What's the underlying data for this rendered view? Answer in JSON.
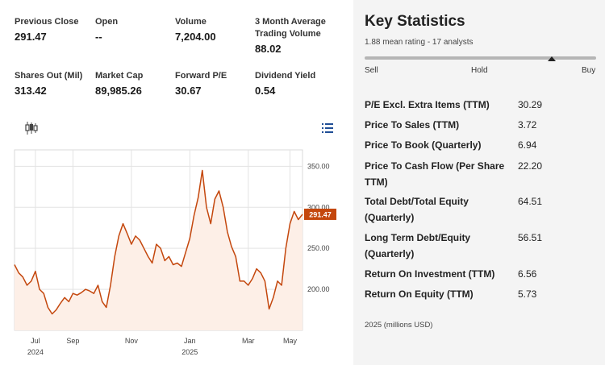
{
  "quote_stats": [
    {
      "label": "Previous Close",
      "value": "291.47"
    },
    {
      "label": "Open",
      "value": "--"
    },
    {
      "label": "Volume",
      "value": "7,204.00"
    },
    {
      "label": "3 Month Average Trading Volume",
      "value": "88.02"
    },
    {
      "label": "Shares Out (Mil)",
      "value": "313.42"
    },
    {
      "label": "Market Cap",
      "value": "89,985.26"
    },
    {
      "label": "Forward P/E",
      "value": "30.67"
    },
    {
      "label": "Dividend Yield",
      "value": "0.54"
    }
  ],
  "chart_controls": {
    "candlestick_icon": "candlestick-icon",
    "list_icon": "list-icon"
  },
  "chart_data": {
    "type": "area",
    "series": [
      {
        "values": [
          230,
          220,
          215,
          205,
          210,
          222,
          200,
          195,
          178,
          170,
          175,
          183,
          190,
          185,
          195,
          193,
          196,
          200,
          198,
          195,
          205,
          185,
          178,
          205,
          240,
          265,
          280,
          268,
          255,
          265,
          260,
          250,
          240,
          232,
          255,
          250,
          235,
          240,
          230,
          232,
          228,
          245,
          262,
          290,
          312,
          345,
          300,
          280,
          310,
          320,
          300,
          270,
          252,
          240,
          210,
          210,
          205,
          213,
          225,
          220,
          210,
          176,
          190,
          210,
          205,
          250,
          280,
          295,
          285,
          291.47
        ]
      }
    ],
    "x_tick_labels": [
      {
        "label": "Jul",
        "sub": "2024",
        "index": 5
      },
      {
        "label": "Sep",
        "sub": "",
        "index": 14
      },
      {
        "label": "Nov",
        "sub": "",
        "index": 28
      },
      {
        "label": "Jan",
        "sub": "2025",
        "index": 42
      },
      {
        "label": "Mar",
        "sub": "",
        "index": 56
      },
      {
        "label": "May",
        "sub": "",
        "index": 66
      }
    ],
    "y_ticks": [
      200,
      250,
      300,
      350
    ],
    "y_tick_labels": [
      "200.00",
      "250.00",
      "300.00",
      "350.00"
    ],
    "ylim": [
      150,
      370
    ],
    "last_value_label": "291.47",
    "colors": {
      "line": "#c4470d",
      "fill": "#fdefe7",
      "badge": "#c4470d",
      "grid": "#e3e3e3"
    },
    "grid": true
  },
  "key_stats": {
    "title": "Key Statistics",
    "subtitle": "1.88 mean rating - 17 analysts",
    "rating": {
      "sell": "Sell",
      "hold": "Hold",
      "buy": "Buy",
      "position_fraction": 0.81
    },
    "metrics": [
      {
        "label": "P/E Excl. Extra Items (TTM)",
        "value": "30.29"
      },
      {
        "label": "Price To Sales (TTM)",
        "value": "3.72"
      },
      {
        "label": "Price To Book (Quarterly)",
        "value": "6.94"
      },
      {
        "label": "Price To Cash Flow (Per Share TTM)",
        "value": "22.20"
      },
      {
        "label": "Total Debt/Total Equity (Quarterly)",
        "value": "64.51"
      },
      {
        "label": "Long Term Debt/Equity (Quarterly)",
        "value": "56.51"
      },
      {
        "label": "Return On Investment (TTM)",
        "value": "6.56"
      },
      {
        "label": "Return On Equity (TTM)",
        "value": "5.73"
      }
    ],
    "footnote": "2025 (millions USD)"
  }
}
